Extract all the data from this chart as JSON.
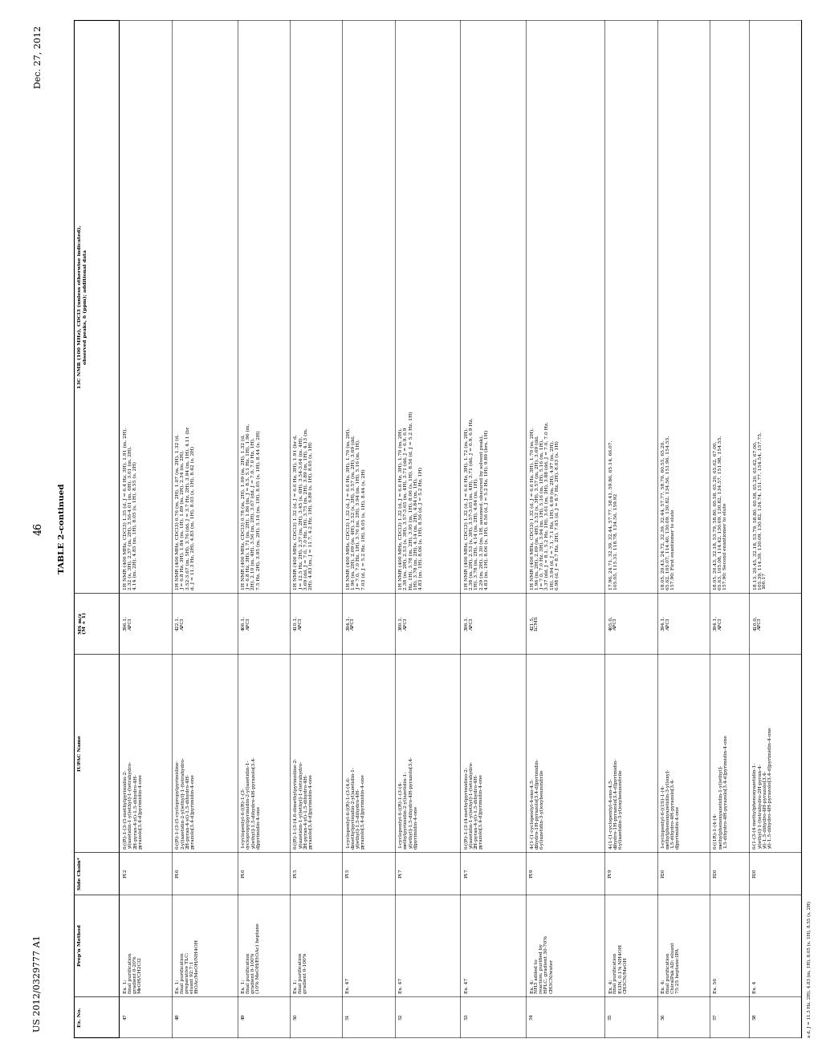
{
  "header_left": "US 2012/0329777 A1",
  "header_right": "Dec. 27, 2012",
  "page_number": "46",
  "table_title": "TABLE 2-continued",
  "bg_color": "#ffffff",
  "text_color": "#000000",
  "columns": [
    "Ex. No.",
    "Prep'n Method",
    "Side Chain*",
    "IUPAC Name",
    "MS m/z\n(M + 1)",
    "13C NMR (100 MHz), CDCl3 (unless otherwise indicated),\nobserved peaks, δ (ppm); additional data"
  ],
  "rows": [
    {
      "ex": "47",
      "prep": "Ex. 1;\nfinal purification\ngradient 0-20%\nMeOH/CH2Cl2",
      "side": "P12",
      "iupac": "6-((R)-1-(3-(5-methylpyrimidin-2-\nyl)azetidin-1-yl)ethyl]-1-(tetrahydro-\n2H-pyran-4-yl)-1,5-dihydro-4H-\npyrazolo[3,4-d]pyrimidin-4-one",
      "ms": "396.1,\nAPCI",
      "nmr": "1H NMR (400 MHz, CDCl3) 1.35 (d, J = 6.4 Hz, 3H), 1.91 (m, 2H),\n2.32 (s, 3H), 2.37 (m, 2H), 3.56-4.01 (m, 6H), 3.61 (m, 2H),\n4.14 (m, 2H), 4.85 (m, 1H), 8.05 (s, 1H), 8.55 (s, 2H)"
    },
    {
      "ex": "48",
      "prep": "Ex. 1;\nfinal purification\npreparative TLC;\neluant 92:7:1\nEtOAc/MeOH/NH4OH",
      "side": "P16",
      "iupac": "6-((R)-1-(3-(5-cyclopropylpyrimidine-\n2-yl)azetidin-2-yl)ethyl]-1-(tetrahydro-\n2H-pyran-4-yl)-1,5-dihydro-4H-\npyrazolo[3,4-d]pyrimidin-4-one",
      "ms": "422.1,\nAPCI",
      "nmr": "1H NMR (400 MHz, CDCl3) 0.76 (m, 2H), 1.07 (m, 2H), 1.32 (d,\nJ = 6.8 Hz, 3H), 1.84 (m, 1H), 1.89 (m, 2H), 2.34 (m, 2H),\n3.52-3.67 (m, 5H), 3.76 (dd, J = 3.7 Hz, 2H), 3.94 (m, 1H), 4.11 (br\nd, J = 11.3 Hz, 2H), 4.83 (m, 1H), 8.03 (s, 1H), 8.42 (s, 2H)"
    },
    {
      "ex": "49",
      "prep": "Ex. 1;\nfinal purification\ngradient 0-100%\n(10% MeOH/EtOAc) heptane",
      "side": "P16",
      "iupac": "1-cyclopentyl-6-((R)-1-(3-\ncyclopropylpyrimidin-2-yl)azetidin-1-\nyl)ethyl]-1,5-dihydro-4H-pyrazolo[3,4-\nd]pyrimidin-4-one",
      "ms": "406.1,\nAPCI",
      "nmr": "1H NMR (400 MHz, CDCl3) 0.78 (m, 2H), 1.09 (m, 2H), 1.32 (d,\nJ = 6.8 Hz, 3H), 1.71 (m, 2H), 1.86 (m, J = 8.5, 5.1 Hz, 1H), 1.96 (m,\n2H), 2.10 (m, 4H), 3.56 (m, 2H), 3.67 (dd, J = 7.0, 7.0 Hz, 1H),\n7.5 Hz, 2H), 3.95 (m, 2H), 5.16 (m, 1H), 8.05 (s, 1H), 8.44 (s, 2H)"
    },
    {
      "ex": "50",
      "prep": "Ex. 1;\nfinal purification\ngradient 0-100%",
      "side": "P15",
      "iupac": "6-((R)-1-(3-(4,6-dimethylpyrimidine-2-\nyl)azetidin-1-yl)ethyl]-1-(tetrahydro-\n2H-pyran-4-yl)-1,5-dihydro-4H-\npyrazolo[3,4-d]pyrimidin-4-one",
      "ms": "410.1,\nAPCI",
      "nmr": "1H NMR (400 MHz, CDCl3) 1.32 (d, J = 6.6 Hz, 3H), 1.91 (br d,\nJ = 12.5 Hz, 2H), 2.37 (m, 2H), 3.45 (s, 6H), 3.54-3.64 (m, 4H),\n3.69 (dd, J = 7.0, 7.0 Hz, 1H), 3.75 (m, 2H), 3.89 (m, 1H), 4.13 (m,\n2H), 4.83 (m, J = 11.7, 4.2 Hz, 1H), 6.89 (s, 1H), 8.05 (s, 1H)"
    },
    {
      "ex": "51",
      "prep": "Ex. 47",
      "side": "P15",
      "iupac": "1-cyclopentyl-6-((R)-1-(3-(4,6-\ndimethylpyrimidin-2-yl)azetidin-1-\nyl)ethyl]-1,5-dihydro-4H-\npyrazolo[3,4-d]pyrimidin-4-one",
      "ms": "394.1,\nAPCI",
      "nmr": "1H NMR (400 MHz, CDCl3) 1.32 (d, J = 6.6 Hz, 3H), 1.70 (m, 2H),\n1.96 (m, 2H), 2.09 (m, 4H), 2.52 (s, 3H), 3.57 (m, 2H), 3.69 (dd,\nJ = 7.0, 7.0 Hz, 1H), 3.76 (m, 2H), 3.94 (m, 1H), 5.16 (m, 1H),\n7.03 (d, J = 5.2 Hz, 1H), 8.05 (s, 1H), 8.44 (s, 2H)"
    },
    {
      "ex": "52",
      "prep": "Ex. 47",
      "side": "P17",
      "iupac": "1-cyclopentyl-6-((R)-1-(3-(4-\nmethylpyrimidin-2-yl)azetidin-1-\nyl)ethyl]-1,5-dihydro-4H-pyrazolo[3,4-\nd]pyrimidin-4-one",
      "ms": "380.1,\nAPCI",
      "nmr": "1H NMR (400 MHz, CDCl3) 1.32 (d, J = 6.6 Hz, 3H), 1.70 (m, 2H),\n2.38 (m, 2H), 2.53 (s, 3H), 3.57-3.65 (m, 4H), 3.71 (dd, J = 6.9, 6.9\nHz, 1H), 3.78 (m, 2H), 3.95 (m, 1H), 8.06 (s, 1H), 8.56 (d, J = 5.2 Hz, 1H)\n1H), 3.78 (m, 2H), 4.14 (m, 2H), 4.84 (m, 1H),\n4.83 (m, 1H), 8.06 (s, 1H), 8.56 (d, J = 5.2 Hz, 1H)"
    },
    {
      "ex": "53",
      "prep": "Ex. 47",
      "side": "P17",
      "iupac": "6-((R)-1-(3-(4-methylpyrimidino-2-\nyl)azetidin-1-yl)ethyl]-1-(tetrahydro-\n2H-pyran-4-yl)-1,5-dihydro-4H-\npyrazolo[3,4-d]pyrimidin-4-one",
      "ms": "396.1,\nAPCI",
      "nmr": "1H NMR (400 MHz, CDCl3) 1.32 (d, J = 6.6 Hz, 3H), 1.72 (m, 2H),\n2.38 (m, 2H), 2.53 (s, 3H), 3.57-3.65 (m, 4H), 3.71 (dd, J = 6.9, 6.9 Hz,\n1H), 3.78 (m, 2H), 4.14 (m, 2H), 4.84 (m, 1H),\n2.29 (m, 2H), 3.30 (m, 1H, assumed, obscured by solvent peak),\n4.83 (m, 1H), 8.06 (s, 1H), 8.56 (d, J = 5.2 Hz, 1H), 9.89 (brs, 1H)"
    },
    {
      "ex": "54",
      "prep": "Ex. 4;\nNH3 added to\nreaction; purified by\nHPLC, gradient 30-70%\nCH3CN/water",
      "side": "P19",
      "iupac": "4-(1-(1-cyclopentyl-4-oxo-4,5-\ndihydro-1H-pyrazolo[3,4-d]pyrimidin-\n6-yl)azetidin-3-yl)oxybenzonitrile",
      "ms": "421.5,\nLCMS",
      "nmr": "1H NMR (400 MHz, CDCl3) 1.32 (d, J = 6.6 Hz, 3H), 1.70 (m, 2H),\n1.96 (m, 2H), 2.09 (m, 4H), 2.52 (s, 3H), 3.57 (m, 2H), 3.69 (dd,\nJ = 7.0, 7.0 Hz, 3H), 3.94 (m, 1H), 5.16 (m, 1H), 5.16 (m, 1H),\n3.37 (dd, J = 8.1, 5.2 Hz, 1H), 3.61 (m, 3H), 3.88 (dd, J = 7.0, 7.0 Hz,\n1H), 3.94 (d, J = 7.1, 7.1 Hz, 1H), 4.09 (m, 2H), 4.97 (m, 2H),\n6.98 (d, J = 8.7 Hz, 2H), 7.65 (d, J = 8.7 Hz, 2H), 8.03 (s, 1H)"
    },
    {
      "ex": "55",
      "prep": "Ex. 4;\nfinal purification\nEt3N, 0.1% NH4OH\nCH3CN/MeOH",
      "side": "P19",
      "iupac": "4-(1-(1-cyclopentyl-4-oxo-4,5-\ndihydro-1H-pyrazolo[3,4-d]pyrimidin-\n6-yl)azetidin-3-yl)oxybenzonitrile",
      "ms": "405.0,\nAPCI",
      "nmr": "17.96, 24.71, 32.39, 32.44, 57.77, 58.41, 59.86, 65.14, 66.07,\n105.05, 115.31, 118.78, 134.56, 159.92"
    },
    {
      "ex": "56",
      "prep": "Ex. 4;\nfinal purification\nChiralPak AD; eluant\n75:25 heptane:IPA",
      "side": "P20",
      "iupac": "1-cyclopentyl-6-((1S)-1-(4-\nmethylphenoxyazetidin-3-yl)oxy]-\n1,5-dihydro-4H-pyrazolo[3,4-\nd]pyrimidin-4-one",
      "ms": "394.1,\nAPCI",
      "nmr": "18.05, 20.43, 24.72, 32.39, 32.44, 57.77, 58.79, 60.55, 65.20,\n65.62, 105.07, 114.40, 130.09, 130.82, 134.56, 151.96, 154.55,\n157.90; First enantiomer to elute"
    },
    {
      "ex": "57",
      "prep": "Ex. 56",
      "side": "P20",
      "iupac": "6-((1R)-1-(4-(4-\nmethylphenoxyazetidin-1-yl)ethyl]-\n1,5-dihydro-4H-pyrazolo[3,4-d]pyrimidin-4-one",
      "ms": "394.1,\nAPCI",
      "nmr": "18.05, 20.43, 32.18, 53.79, 58.80, 60.58, 65.20, 65.62, 67.00,\n65.63, 105.08, 114.42, 130.09, 130.82, 134.57, 151.98, 154.55,\n157.90; Second enantiomer to elute"
    },
    {
      "ex": "58",
      "prep": "Ex. 4",
      "side": "P20",
      "iupac": "6-(1-(3-(4-methylphenoxyazetidin-1-\nyl)ethyl]-1-(tetrahydro-2H-pyran-4-\nyl)-1,5-dihydro-4H-pyrazolo[3,4-\nyl)-1,5-dihydro-4H-pyrazolo[3,4-d]pyrimidin-4-one",
      "ms": "410.0,\nAPCI",
      "nmr": "18.13, 20.45, 32.18, 53.79, 58.80, 60.58, 65.20, 65.62, 67.00,\n105.39, 114.39, 130.09, 130.82, 134.74, 151.77, 154.54, 157.75,\n160.17"
    }
  ],
  "footnote": "a d, J = 11.3 Hz, 2H), 4.83 (m, 1H), 8.05 (s, 1H), 8.55 (s, 2H)"
}
